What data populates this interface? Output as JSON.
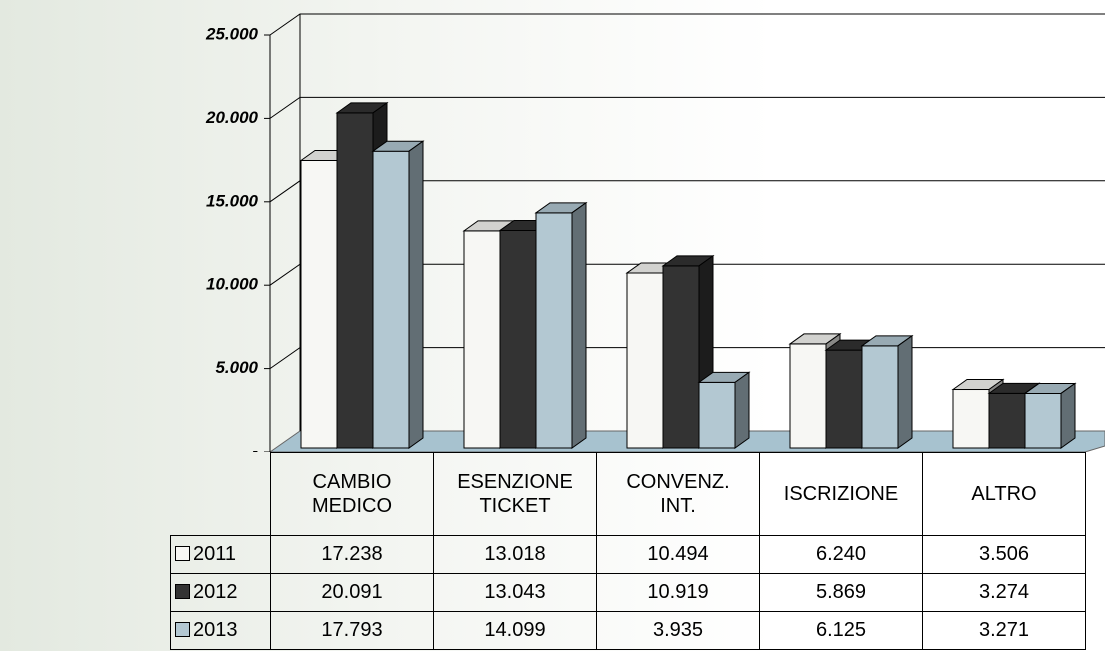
{
  "chart_data": {
    "type": "bar3d",
    "categories": [
      "CAMBIO MEDICO",
      "ESENZIONE TICKET",
      "CONVENZ. INT.",
      "ISCRIZIONE",
      "ALTRO"
    ],
    "series": [
      {
        "name": "2011",
        "color": "#f7f7f4",
        "values": [
          17238,
          13018,
          10494,
          6240,
          3506
        ],
        "value_labels": [
          "17.238",
          "13.018",
          "10.494",
          "6.240",
          "3.506"
        ]
      },
      {
        "name": "2012",
        "color": "#333333",
        "values": [
          20091,
          13043,
          10919,
          5869,
          3274
        ],
        "value_labels": [
          "20.091",
          "13.043",
          "10.919",
          "5.869",
          "3.274"
        ]
      },
      {
        "name": "2013",
        "color": "#b3c8d2",
        "values": [
          17793,
          14099,
          3935,
          6125,
          3271
        ],
        "value_labels": [
          "17.793",
          "14.099",
          "3.935",
          "6.125",
          "3.271"
        ]
      }
    ],
    "ylim": [
      0,
      25000
    ],
    "yticks": [
      {
        "value": 0,
        "label": "-"
      },
      {
        "value": 5000,
        "label": "5.000"
      },
      {
        "value": 10000,
        "label": "10.000"
      },
      {
        "value": 15000,
        "label": "15.000"
      },
      {
        "value": 20000,
        "label": "20.000"
      },
      {
        "value": 25000,
        "label": "25.000"
      }
    ],
    "grid": true
  }
}
